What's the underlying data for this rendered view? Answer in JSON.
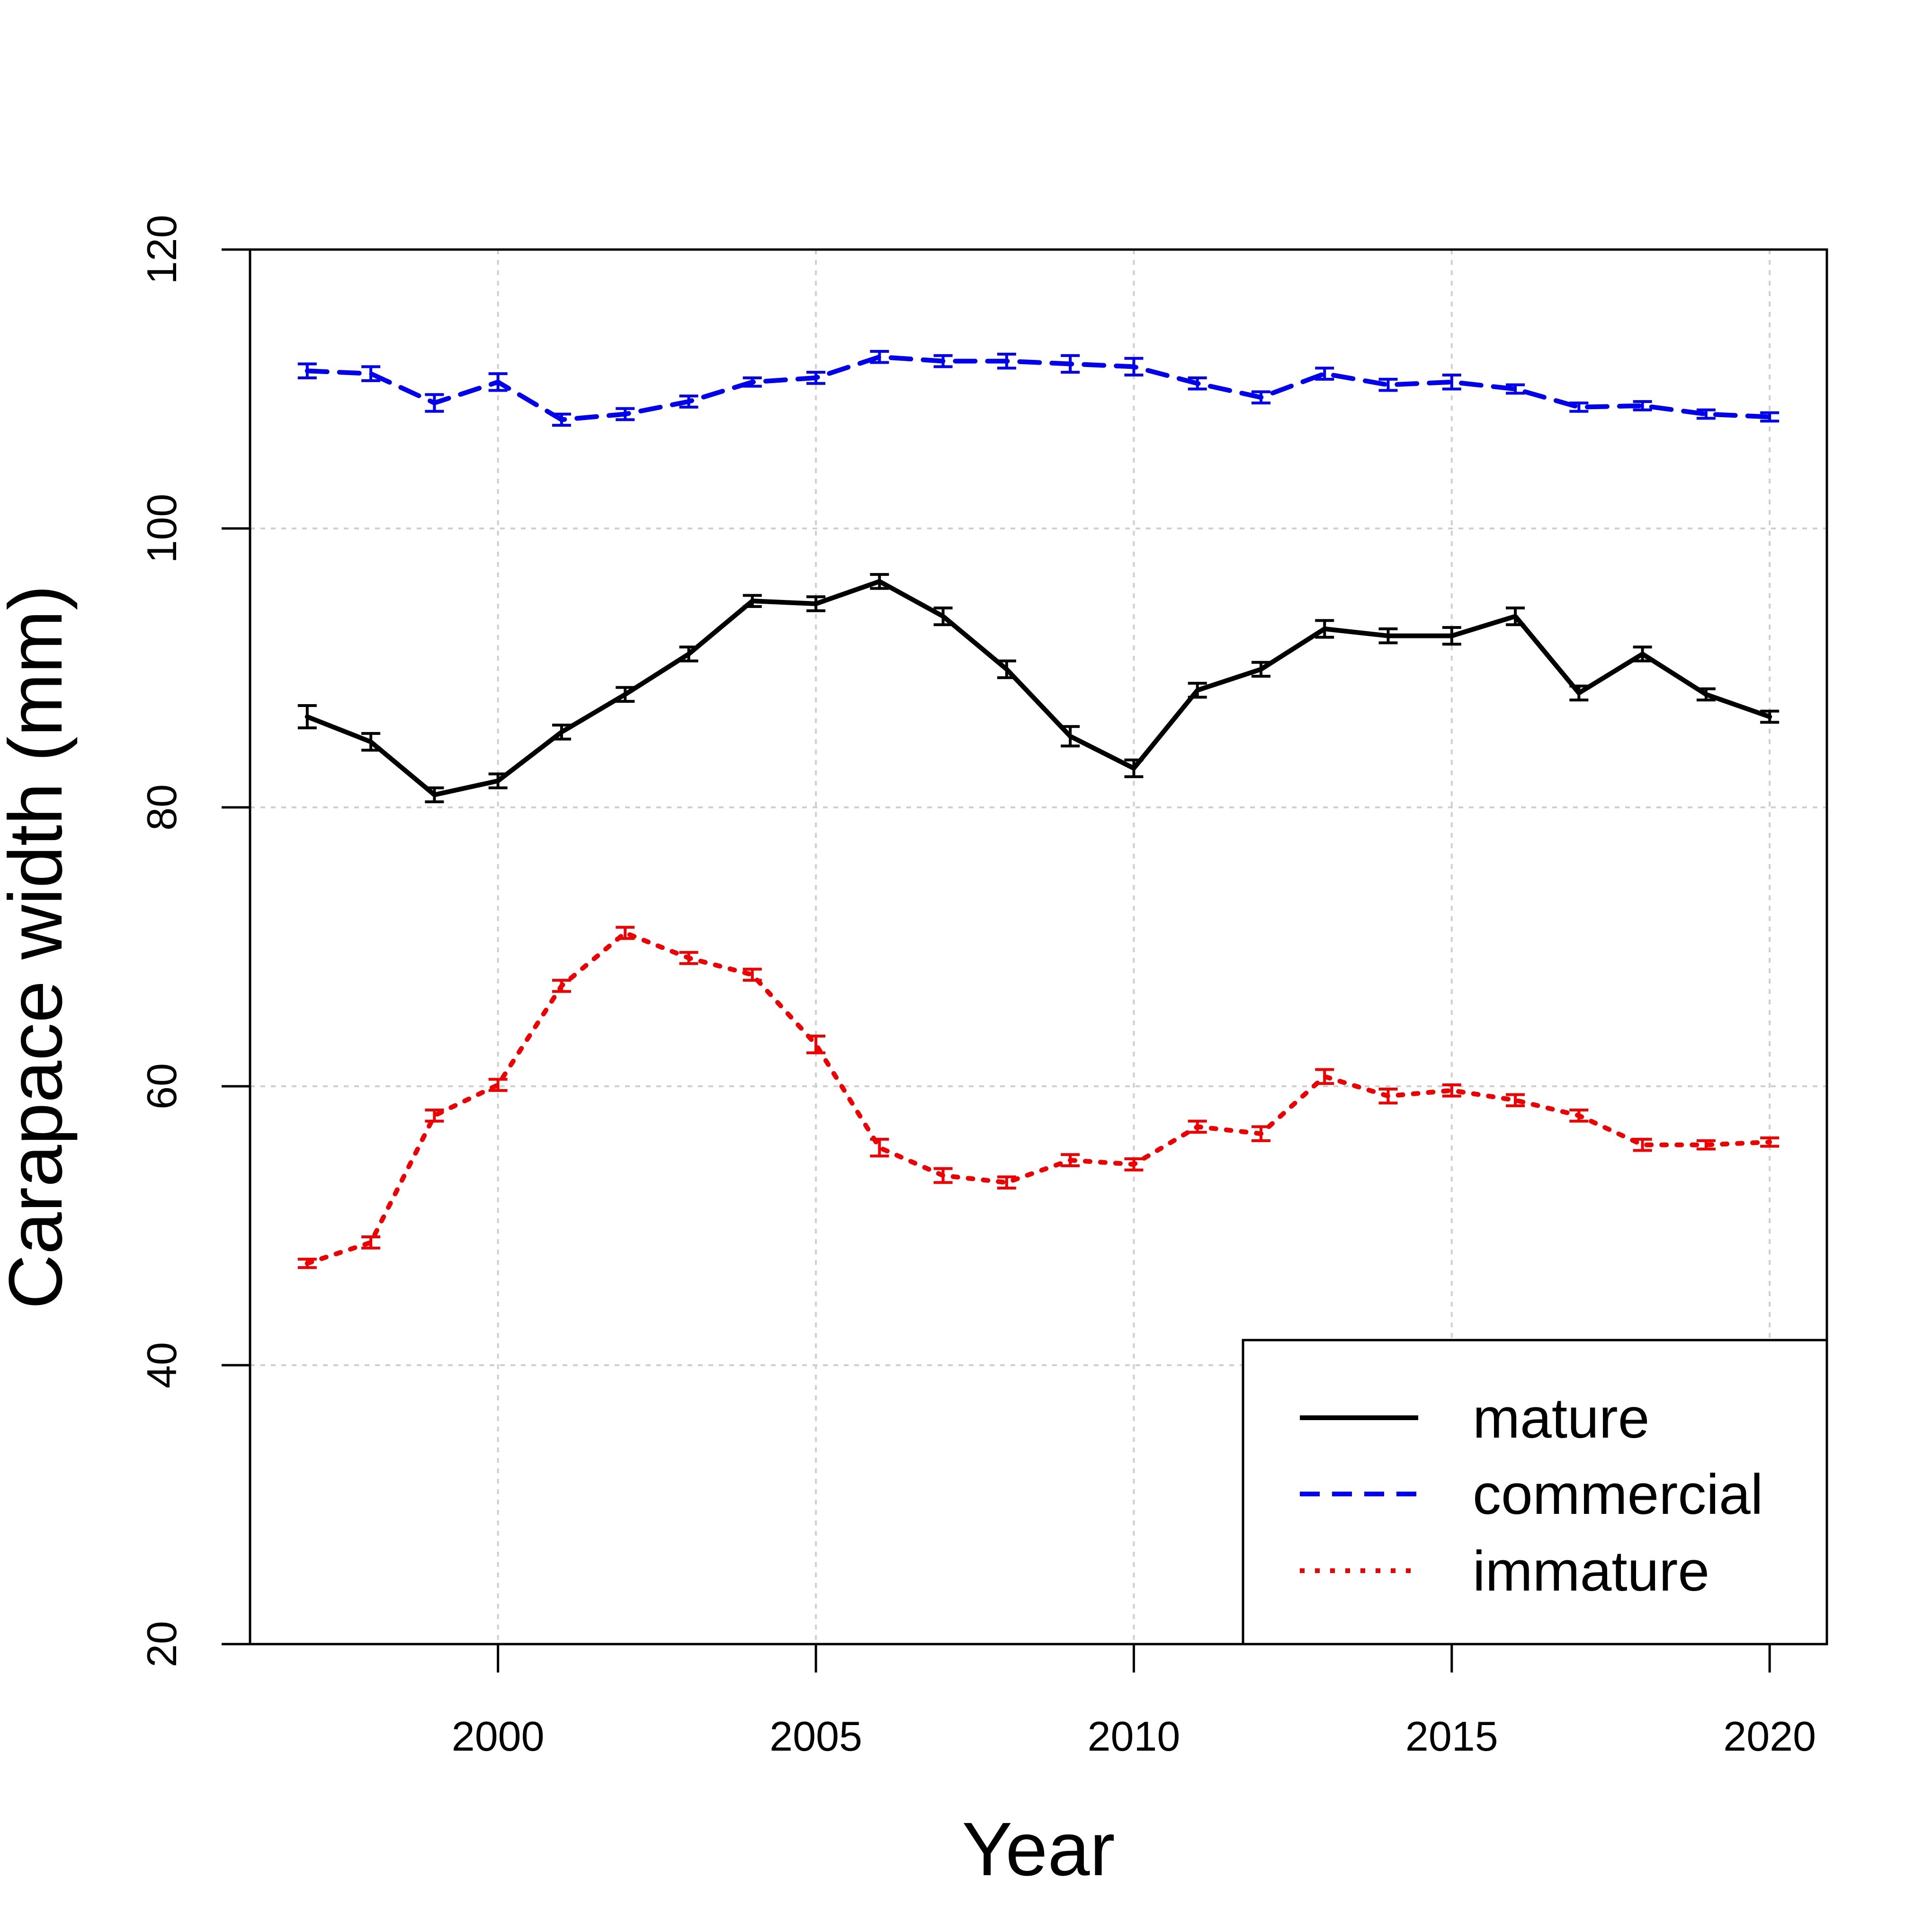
{
  "chart_data": {
    "type": "line",
    "title": "",
    "xlabel": "Year",
    "ylabel": "Carapace width (mm)",
    "xlim": [
      1996.1,
      2020.9
    ],
    "ylim": [
      20,
      120
    ],
    "xticks": [
      2000,
      2005,
      2010,
      2015,
      2020
    ],
    "yticks": [
      20,
      40,
      60,
      80,
      100,
      120
    ],
    "grid": true,
    "legend_position": "bottom-right",
    "x": [
      1997,
      1998,
      1999,
      2000,
      2001,
      2002,
      2003,
      2004,
      2005,
      2006,
      2007,
      2008,
      2009,
      2010,
      2011,
      2012,
      2013,
      2014,
      2015,
      2016,
      2017,
      2018,
      2019,
      2020
    ],
    "series": [
      {
        "name": "mature",
        "color": "#000000",
        "dash": "solid",
        "values": [
          86.5,
          84.7,
          80.9,
          81.9,
          85.4,
          88.1,
          91.0,
          94.8,
          94.6,
          96.2,
          93.7,
          89.9,
          85.1,
          82.8,
          88.4,
          89.9,
          92.8,
          92.3,
          92.3,
          93.7,
          88.2,
          91.0,
          88.1,
          86.5
        ],
        "err": [
          0.8,
          0.6,
          0.5,
          0.5,
          0.5,
          0.5,
          0.5,
          0.4,
          0.5,
          0.5,
          0.6,
          0.6,
          0.7,
          0.6,
          0.5,
          0.5,
          0.6,
          0.5,
          0.6,
          0.6,
          0.5,
          0.5,
          0.4,
          0.4
        ]
      },
      {
        "name": "commercial",
        "color": "#0000ee",
        "dash": "dashed",
        "values": [
          111.3,
          111.1,
          109.0,
          110.5,
          107.8,
          108.2,
          109.1,
          110.5,
          110.8,
          112.3,
          112.0,
          112.0,
          111.8,
          111.6,
          110.4,
          109.4,
          111.1,
          110.3,
          110.5,
          110.0,
          108.7,
          108.8,
          108.2,
          108.0
        ],
        "err": [
          0.5,
          0.5,
          0.6,
          0.6,
          0.4,
          0.4,
          0.4,
          0.3,
          0.4,
          0.4,
          0.4,
          0.5,
          0.6,
          0.6,
          0.4,
          0.4,
          0.4,
          0.4,
          0.5,
          0.3,
          0.3,
          0.3,
          0.3,
          0.3
        ]
      },
      {
        "name": "immature",
        "color": "#ee0000",
        "dash": "dotted",
        "values": [
          47.3,
          48.8,
          57.9,
          60.1,
          67.2,
          71.0,
          69.2,
          68.0,
          63.0,
          55.6,
          53.6,
          53.1,
          54.7,
          54.4,
          57.1,
          56.6,
          60.7,
          59.3,
          59.7,
          59.0,
          57.9,
          55.8,
          55.8,
          56.0
        ],
        "err": [
          0.3,
          0.4,
          0.4,
          0.4,
          0.4,
          0.4,
          0.4,
          0.4,
          0.6,
          0.6,
          0.5,
          0.4,
          0.4,
          0.4,
          0.4,
          0.5,
          0.5,
          0.5,
          0.4,
          0.4,
          0.4,
          0.4,
          0.3,
          0.3
        ]
      }
    ]
  }
}
